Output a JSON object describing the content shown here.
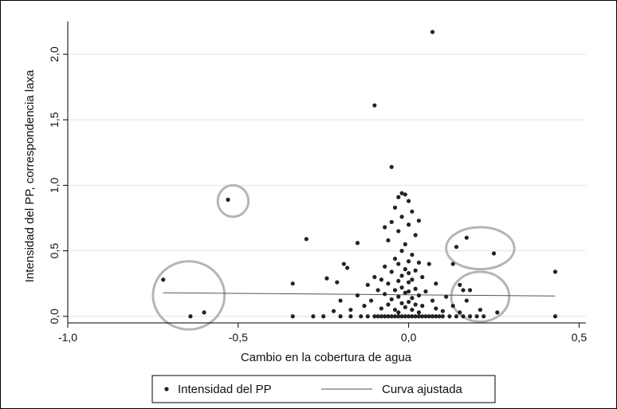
{
  "chart_data": {
    "type": "scatter",
    "xlabel": "Cambio en la cobertura de agua",
    "ylabel": "Intensidad del PP, correspondencia laxa",
    "xlim": [
      -1.0,
      0.52
    ],
    "ylim": [
      -0.05,
      2.25
    ],
    "x_ticks": [
      -1.0,
      -0.5,
      0.0,
      0.5
    ],
    "x_tick_labels": [
      "-1,0",
      "-0,5",
      "0,0",
      "0,5"
    ],
    "y_ticks": [
      0.0,
      0.5,
      1.0,
      1.5,
      2.0
    ],
    "y_tick_labels": [
      "0,0",
      "0,5",
      "1,0",
      "1,5",
      "2,0"
    ],
    "grid": "horizontal",
    "legend_position": "bottom",
    "series": [
      {
        "name": "Intensidad del PP",
        "kind": "scatter",
        "color": "#222222",
        "points": [
          [
            0.07,
            2.17
          ],
          [
            -0.1,
            1.61
          ],
          [
            -0.05,
            1.14
          ],
          [
            -0.53,
            0.89
          ],
          [
            -0.02,
            0.94
          ],
          [
            -0.01,
            0.93
          ],
          [
            -0.03,
            0.91
          ],
          [
            0.0,
            0.88
          ],
          [
            -0.04,
            0.83
          ],
          [
            0.01,
            0.8
          ],
          [
            -0.02,
            0.76
          ],
          [
            0.03,
            0.73
          ],
          [
            -0.05,
            0.72
          ],
          [
            0.0,
            0.7
          ],
          [
            -0.07,
            0.68
          ],
          [
            -0.03,
            0.65
          ],
          [
            0.02,
            0.62
          ],
          [
            -0.06,
            0.58
          ],
          [
            -0.01,
            0.55
          ],
          [
            -0.15,
            0.56
          ],
          [
            0.17,
            0.6
          ],
          [
            -0.3,
            0.59
          ],
          [
            0.14,
            0.53
          ],
          [
            0.25,
            0.48
          ],
          [
            -0.02,
            0.5
          ],
          [
            0.01,
            0.47
          ],
          [
            -0.04,
            0.44
          ],
          [
            0.0,
            0.42
          ],
          [
            -0.03,
            0.4
          ],
          [
            0.03,
            0.41
          ],
          [
            -0.07,
            0.38
          ],
          [
            0.13,
            0.4
          ],
          [
            0.06,
            0.4
          ],
          [
            -0.19,
            0.4
          ],
          [
            -0.18,
            0.37
          ],
          [
            -0.01,
            0.36
          ],
          [
            0.02,
            0.35
          ],
          [
            -0.05,
            0.34
          ],
          [
            0.0,
            0.33
          ],
          [
            -0.02,
            0.31
          ],
          [
            -0.1,
            0.3
          ],
          [
            -0.08,
            0.28
          ],
          [
            0.04,
            0.3
          ],
          [
            0.01,
            0.28
          ],
          [
            -0.03,
            0.27
          ],
          [
            0.0,
            0.26
          ],
          [
            -0.06,
            0.25
          ],
          [
            0.08,
            0.25
          ],
          [
            -0.24,
            0.29
          ],
          [
            -0.21,
            0.26
          ],
          [
            0.43,
            0.34
          ],
          [
            -0.72,
            0.28
          ],
          [
            -0.34,
            0.25
          ],
          [
            -0.12,
            0.24
          ],
          [
            0.15,
            0.24
          ],
          [
            -0.02,
            0.22
          ],
          [
            0.02,
            0.21
          ],
          [
            -0.04,
            0.2
          ],
          [
            0.0,
            0.19
          ],
          [
            -0.09,
            0.2
          ],
          [
            0.05,
            0.19
          ],
          [
            0.16,
            0.2
          ],
          [
            0.18,
            0.2
          ],
          [
            -0.01,
            0.18
          ],
          [
            -0.07,
            0.17
          ],
          [
            0.03,
            0.16
          ],
          [
            -0.15,
            0.16
          ],
          [
            0.11,
            0.15
          ],
          [
            -0.03,
            0.15
          ],
          [
            0.01,
            0.14
          ],
          [
            -0.05,
            0.13
          ],
          [
            0.07,
            0.12
          ],
          [
            -0.11,
            0.12
          ],
          [
            0.17,
            0.12
          ],
          [
            -0.2,
            0.12
          ],
          [
            0.0,
            0.11
          ],
          [
            -0.02,
            0.1
          ],
          [
            0.02,
            0.09
          ],
          [
            -0.06,
            0.09
          ],
          [
            0.04,
            0.08
          ],
          [
            -0.13,
            0.08
          ],
          [
            0.13,
            0.08
          ],
          [
            -0.01,
            0.07
          ],
          [
            0.08,
            0.06
          ],
          [
            -0.08,
            0.06
          ],
          [
            0.01,
            0.05
          ],
          [
            -0.04,
            0.05
          ],
          [
            -0.17,
            0.05
          ],
          [
            0.1,
            0.04
          ],
          [
            0.21,
            0.05
          ],
          [
            -0.6,
            0.03
          ],
          [
            0.26,
            0.03
          ],
          [
            -0.03,
            0.03
          ],
          [
            0.03,
            0.03
          ],
          [
            0.15,
            0.03
          ],
          [
            -0.22,
            0.04
          ],
          [
            -0.64,
            0.0
          ],
          [
            -0.34,
            0.0
          ],
          [
            -0.28,
            0.0
          ],
          [
            -0.25,
            0.0
          ],
          [
            -0.2,
            0.0
          ],
          [
            -0.17,
            0.0
          ],
          [
            -0.14,
            0.0
          ],
          [
            -0.12,
            0.0
          ],
          [
            -0.1,
            0.0
          ],
          [
            -0.09,
            0.0
          ],
          [
            -0.08,
            0.0
          ],
          [
            -0.07,
            0.0
          ],
          [
            -0.06,
            0.0
          ],
          [
            -0.05,
            0.0
          ],
          [
            -0.04,
            0.0
          ],
          [
            -0.03,
            0.0
          ],
          [
            -0.02,
            0.0
          ],
          [
            -0.01,
            0.0
          ],
          [
            0.0,
            0.0
          ],
          [
            0.01,
            0.0
          ],
          [
            0.02,
            0.0
          ],
          [
            0.03,
            0.0
          ],
          [
            0.04,
            0.0
          ],
          [
            0.05,
            0.0
          ],
          [
            0.06,
            0.0
          ],
          [
            0.07,
            0.0
          ],
          [
            0.08,
            0.0
          ],
          [
            0.09,
            0.0
          ],
          [
            0.1,
            0.0
          ],
          [
            0.12,
            0.0
          ],
          [
            0.14,
            0.0
          ],
          [
            0.16,
            0.0
          ],
          [
            0.18,
            0.0
          ],
          [
            0.2,
            0.0
          ],
          [
            0.22,
            0.0
          ],
          [
            0.43,
            0.0
          ]
        ]
      },
      {
        "name": "Curva ajustada",
        "kind": "line",
        "color": "#555555",
        "points": [
          [
            -0.72,
            0.18
          ],
          [
            0.43,
            0.155
          ]
        ]
      }
    ],
    "highlight_ellipses": [
      {
        "cx": -0.515,
        "cy": 0.88,
        "rx": 0.045,
        "ry": 0.12
      },
      {
        "cx": -0.645,
        "cy": 0.16,
        "rx": 0.105,
        "ry": 0.26
      },
      {
        "cx": 0.21,
        "cy": 0.52,
        "rx": 0.1,
        "ry": 0.16
      },
      {
        "cx": 0.21,
        "cy": 0.15,
        "rx": 0.085,
        "ry": 0.19
      }
    ],
    "highlight_color": "#b5b5b5"
  },
  "legend": {
    "items": [
      {
        "label": "Intensidad del PP",
        "symbol": "dot"
      },
      {
        "label": "Curva ajustada",
        "symbol": "line"
      }
    ]
  }
}
